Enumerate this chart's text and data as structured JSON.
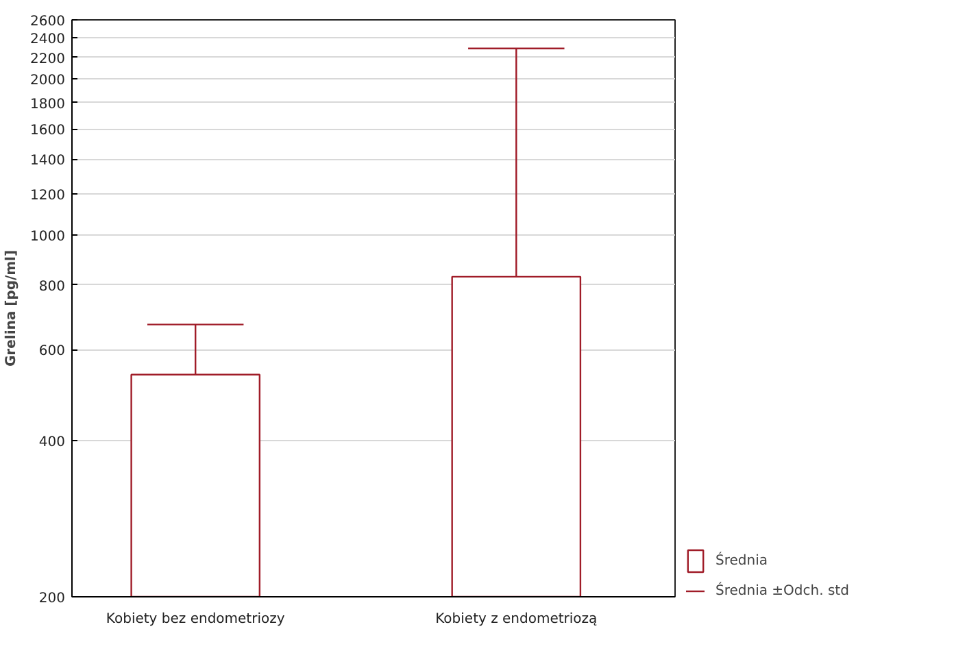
{
  "chart_data": {
    "type": "bar",
    "ylabel": "Grelina [pg/ml]",
    "categories": [
      "Kobiety bez endometriozy",
      "Kobiety z endometriozą"
    ],
    "series": [
      {
        "name": "Średnia",
        "color": "#a01c28",
        "values": [
          537,
          830
        ],
        "errors": [
          [
            537,
            671
          ],
          [
            830,
            2290
          ]
        ]
      }
    ],
    "annotations": [
      "Średnia ±Odch. std"
    ],
    "log": "y",
    "ylim": [
      200,
      2600
    ],
    "yticks": [
      200,
      400,
      600,
      800,
      1000,
      1200,
      1400,
      1600,
      1800,
      2000,
      2200,
      2400,
      2600
    ],
    "grid": "y",
    "legend": "bottom right"
  }
}
